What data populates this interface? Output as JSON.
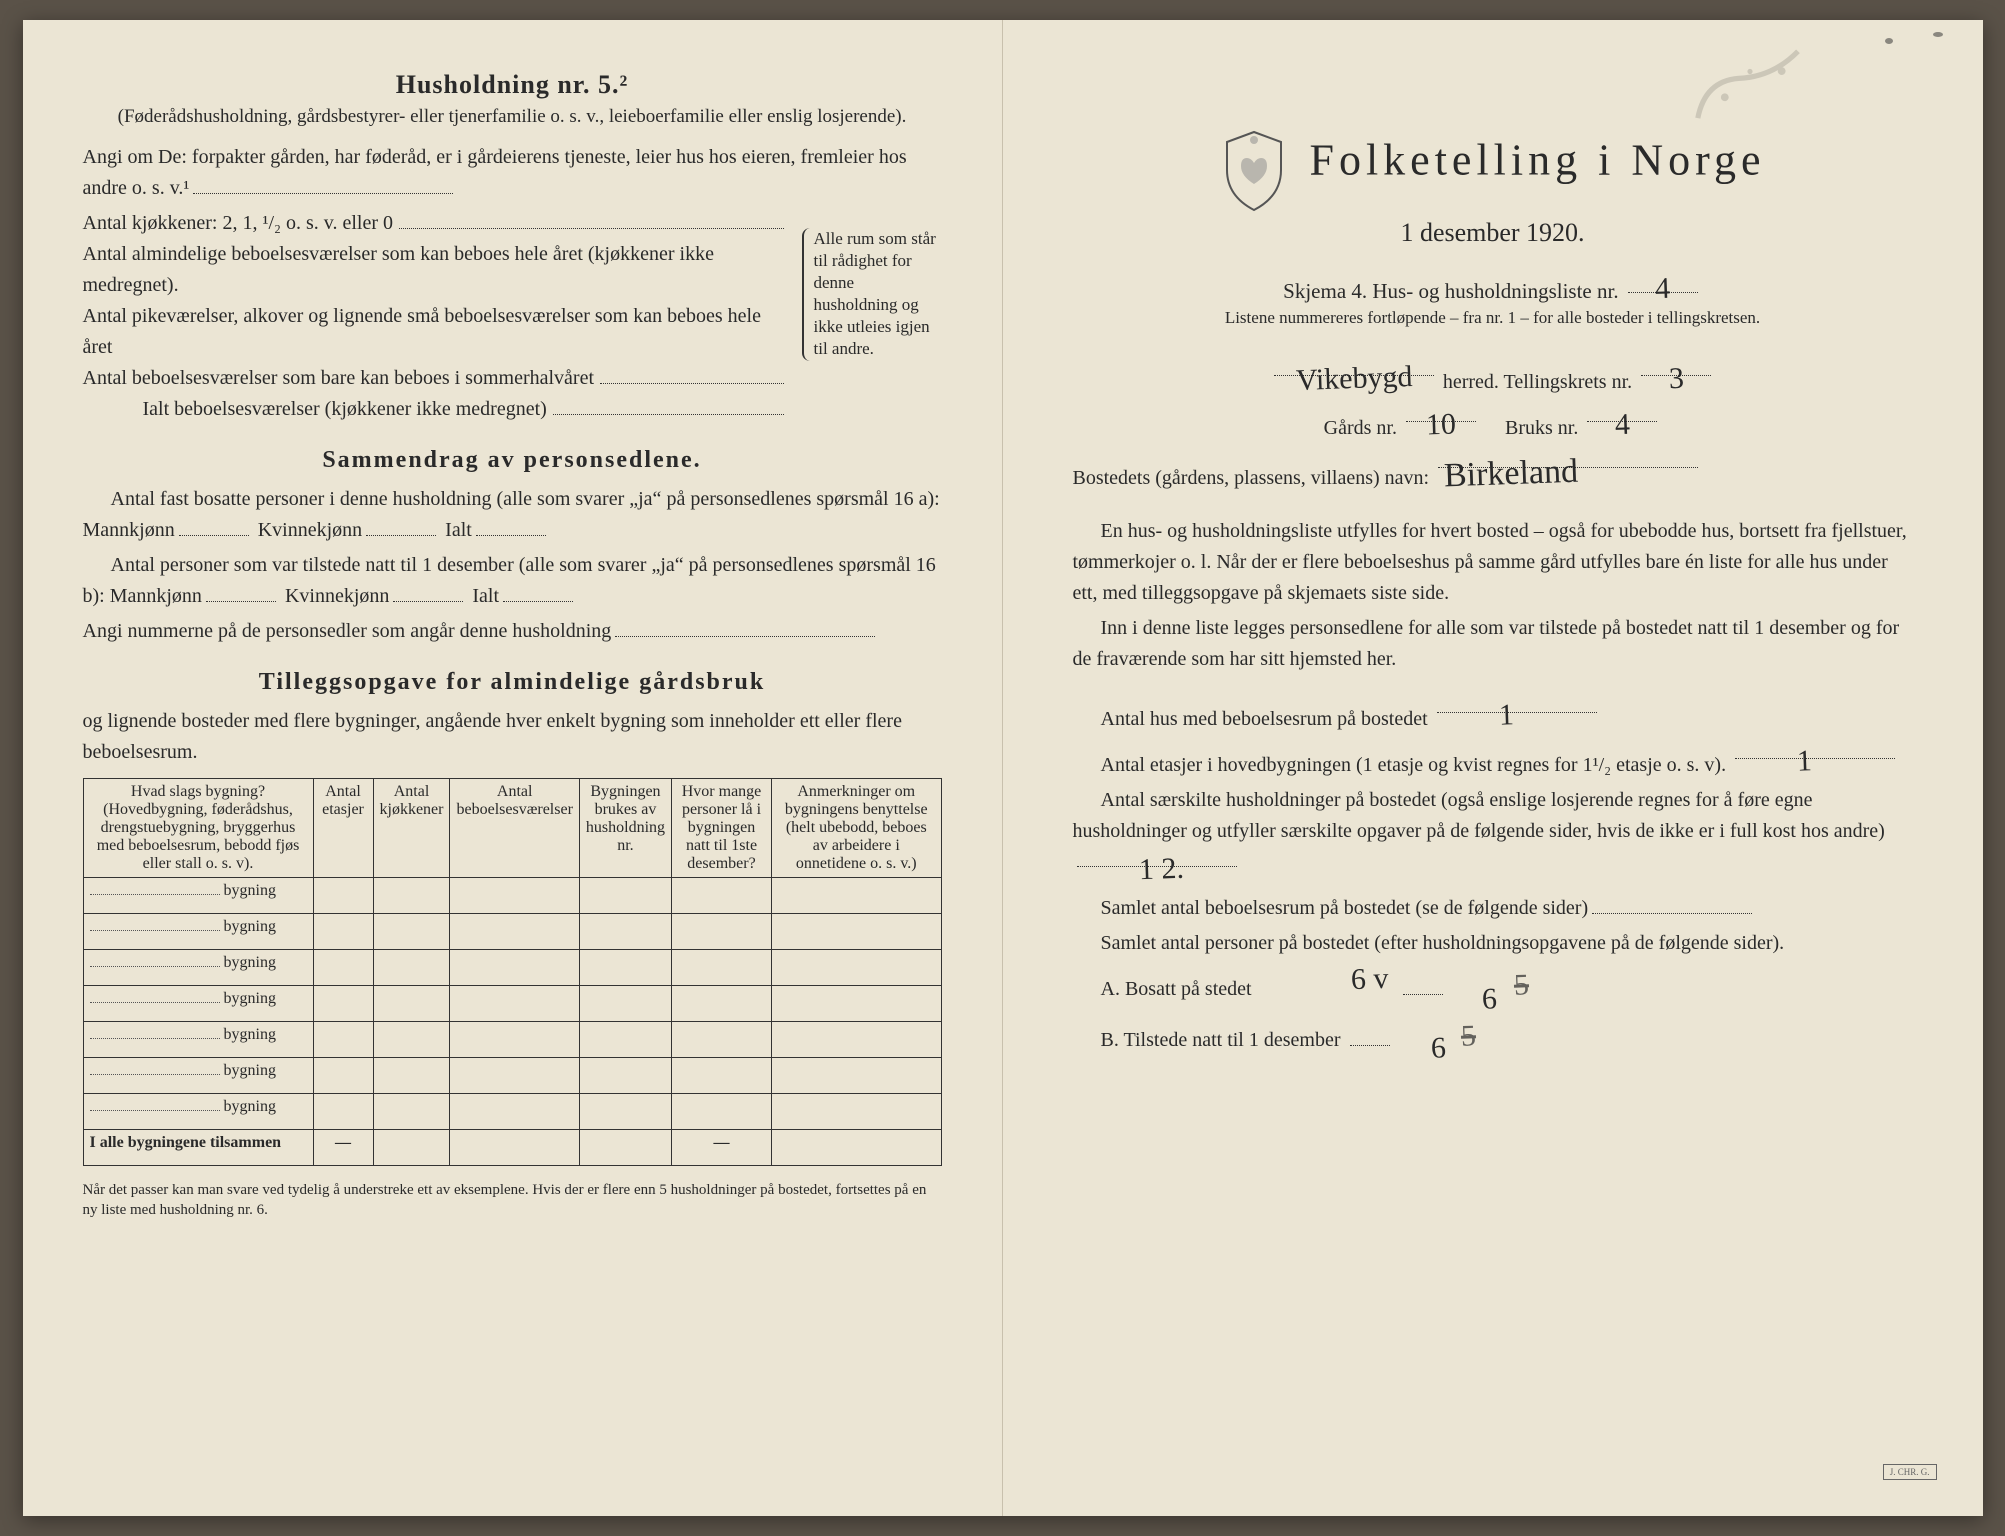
{
  "colors": {
    "paper": "#ebe5d4",
    "ink": "#2a2a2a",
    "border": "#333333",
    "backdrop": "#5a5248"
  },
  "typography": {
    "body_pt": 20,
    "heading_pt": 26,
    "title_pt": 44,
    "small_pt": 17,
    "table_pt": 16
  },
  "left": {
    "heading": "Husholdning nr. 5.²",
    "sub": "(Føderådshusholdning, gårdsbestyrer- eller tjenerfamilie o. s. v., leieboerfamilie eller enslig losjerende).",
    "angi": "Angi om De:   forpakter gården, har føderåd, er i gårdeierens tjeneste, leier hus hos eieren, fremleier hos andre o. s. v.¹",
    "kitchens": "Antal kjøkkener: 2, 1, ¹/₂ o. s. v. eller 0",
    "rooms_lines": [
      "Antal almindelige beboelsesværelser som kan beboes hele året (kjøkkener ikke medregnet).",
      "Antal pikeværelser, alkover og lignende små beboelsesværelser som kan beboes hele året",
      "Antal beboelsesværelser som bare kan beboes i sommerhalvåret"
    ],
    "ialt_line": "Ialt beboelsesværelser (kjøkkener ikke medregnet)",
    "brace_note": "Alle rum som står til rådighet for denne husholdning og ikke utleies igjen til andre.",
    "sammen_heading": "Sammendrag av personsedlene.",
    "sammen_p1a": "Antal fast bosatte personer i denne husholdning (alle som svarer „ja“ på personsedlenes spørsmål 16 a): Mannkjønn",
    "sammen_kv": "Kvinnekjønn",
    "sammen_ialt": "Ialt",
    "sammen_p2a": "Antal personer som var tilstede natt til 1 desember (alle som svarer „ja“ på personsedlenes spørsmål 16 b): Mannkjønn",
    "angi_num": "Angi nummerne på de personsedler som angår denne husholdning",
    "tillegg_heading": "Tilleggsopgave for almindelige gårdsbruk",
    "tillegg_sub": "og lignende bosteder med flere bygninger, angående hver enkelt bygning som inneholder ett eller flere beboelsesrum.",
    "table": {
      "columns": [
        "Hvad slags bygning?\n(Hovedbygning, føderådshus, drengstuebygning, bryggerhus med beboelsesrum, bebodd fjøs eller stall o. s. v).",
        "Antal etasjer",
        "Antal kjøkkener",
        "Antal beboelsesværelser",
        "Bygningen brukes av husholdning nr.",
        "Hvor mange personer lå i bygningen natt til 1ste desember?",
        "Anmerkninger om bygningens benyttelse (helt ubebodd, beboes av arbeidere i onnetidene o. s. v.)"
      ],
      "row_suffix": "bygning",
      "row_count": 7,
      "footer_label": "I alle bygningene tilsammen",
      "footer_dashes": [
        "—",
        "",
        "",
        "",
        "—",
        ""
      ]
    },
    "footnote": "Når det passer kan man svare ved tydelig å understreke ett av eksemplene.\nHvis der er flere enn 5 husholdninger på bostedet, fortsettes på en ny liste med husholdning nr. 6."
  },
  "right": {
    "title": "Folketelling i Norge",
    "date": "1 desember 1920.",
    "skjema_pre": "Skjema 4.  Hus- og husholdningsliste nr.",
    "skjema_hw": "4",
    "listene": "Listene nummereres fortløpende – fra nr. 1 – for alle bosteder i tellingskretsen.",
    "herred_hw": "Vikebygd",
    "herred_label": "herred.   Tellingskrets nr.",
    "krets_hw": "3",
    "gard_label": "Gårds nr.",
    "gard_hw": "10",
    "bruk_label": "Bruks nr.",
    "bruk_hw": "4",
    "bosted_label": "Bostedets (gårdens, plassens, villaens) navn:",
    "bosted_hw": "Birkeland",
    "instr1": "En hus- og husholdningsliste utfylles for hvert bosted – også for ubebodde hus, bortsett fra fjellstuer, tømmerkojer o. l.  Når der er flere beboelseshus på samme gård utfylles bare én liste for alle hus under ett, med tilleggsopgave på skjemaets siste side.",
    "instr2": "Inn i denne liste legges personsedlene for alle som var tilstede på bostedet natt til 1 desember og for de fraværende som har sitt hjemsted her.",
    "q1": "Antal hus med beboelsesrum på bostedet",
    "q1_hw": "1",
    "q2": "Antal etasjer i hovedbygningen (1 etasje og kvist regnes for 1¹/₂ etasje o. s. v).",
    "q2_hw": "1",
    "q3": "Antal særskilte husholdninger på bostedet (også enslige losjerende regnes for å føre egne husholdninger og utfyller særskilte opgaver på de følgende sider, hvis de ikke er i full kost hos andre)",
    "q3_hw": "1 2.",
    "q4": "Samlet antal beboelsesrum på bostedet (se de følgende sider)",
    "q5": "Samlet antal personer på bostedet (efter husholdningsopgavene på de følgende sider).",
    "q5a": "A.  Bosatt på stedet",
    "q5a_hw": "6",
    "q5a_strike": "5",
    "q5b": "B.  Tilstede natt til 1 desember",
    "q5b_hw": "6",
    "q5b_strike": "5",
    "q5_extra_hw": "6 v"
  }
}
